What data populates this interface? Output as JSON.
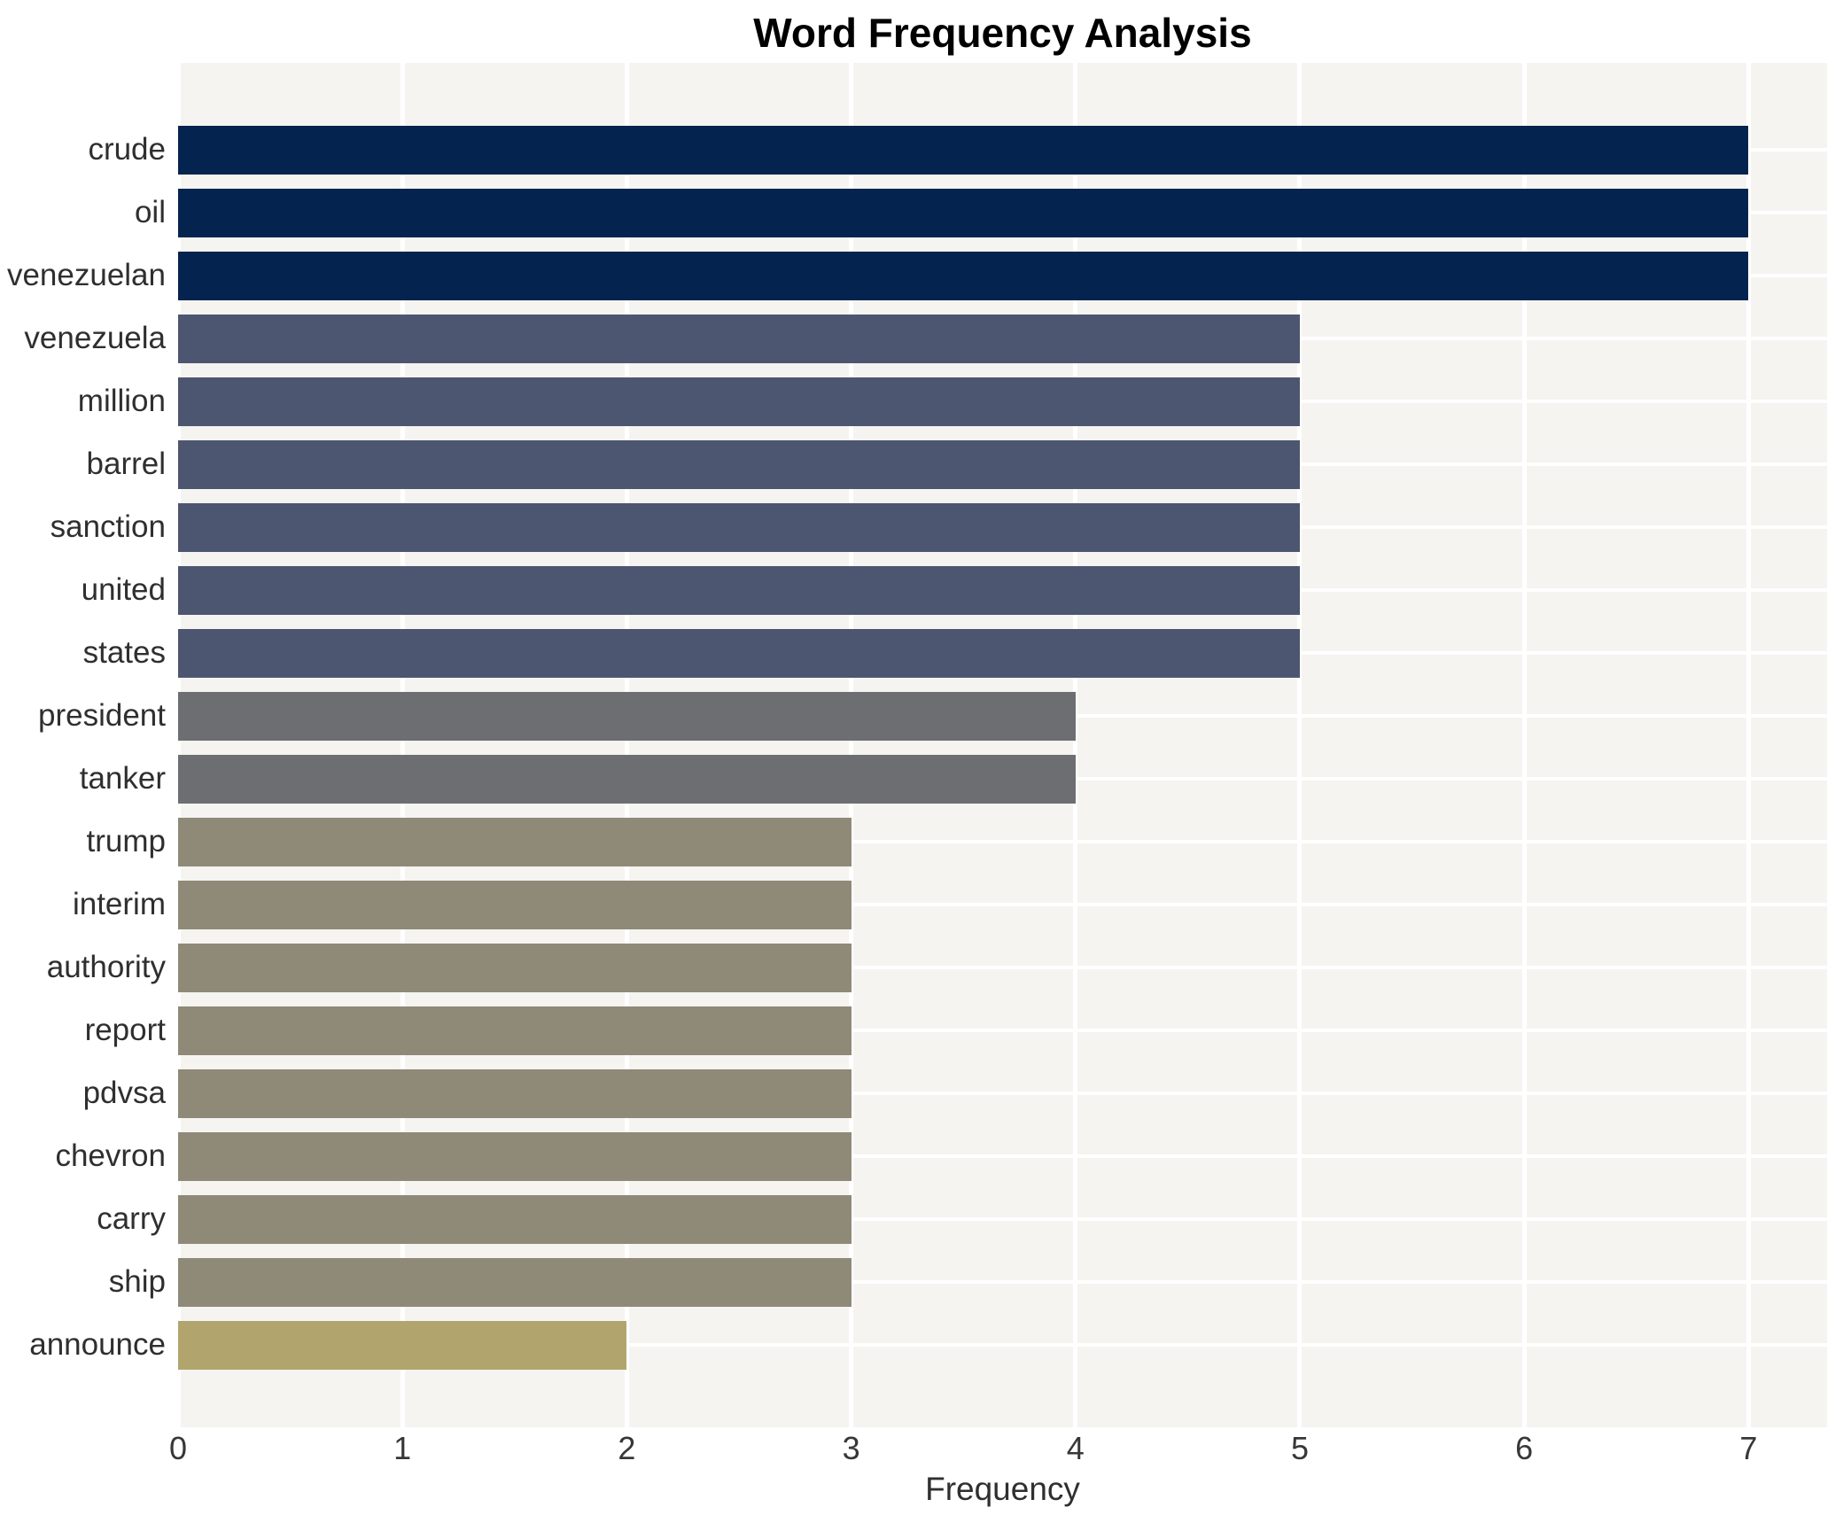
{
  "chart_data": {
    "type": "bar",
    "orientation": "horizontal",
    "title": "Word Frequency Analysis",
    "xlabel": "Frequency",
    "ylabel": "",
    "categories": [
      "crude",
      "oil",
      "venezuelan",
      "venezuela",
      "million",
      "barrel",
      "sanction",
      "united",
      "states",
      "president",
      "tanker",
      "trump",
      "interim",
      "authority",
      "report",
      "pdvsa",
      "chevron",
      "carry",
      "ship",
      "announce"
    ],
    "values": [
      7,
      7,
      7,
      5,
      5,
      5,
      5,
      5,
      5,
      4,
      4,
      3,
      3,
      3,
      3,
      3,
      3,
      3,
      3,
      2
    ],
    "xlim": [
      0,
      7.35
    ],
    "xticks": [
      0,
      1,
      2,
      3,
      4,
      5,
      6,
      7
    ],
    "grid": "white vertical major gridlines at integer ticks; white horizontal gridlines at category centers",
    "legend_visible": false,
    "colors": {
      "value_7": "#04234e",
      "value_5": "#4d5670",
      "value_4": "#6c6e72",
      "value_3": "#8f8978",
      "value_2": "#b1a46d",
      "panel_bg": "#f5f4f1",
      "grid": "#ffffff",
      "tick_text": "#373737",
      "label_text": "#2f2f2f",
      "title_text": "#000000"
    }
  }
}
